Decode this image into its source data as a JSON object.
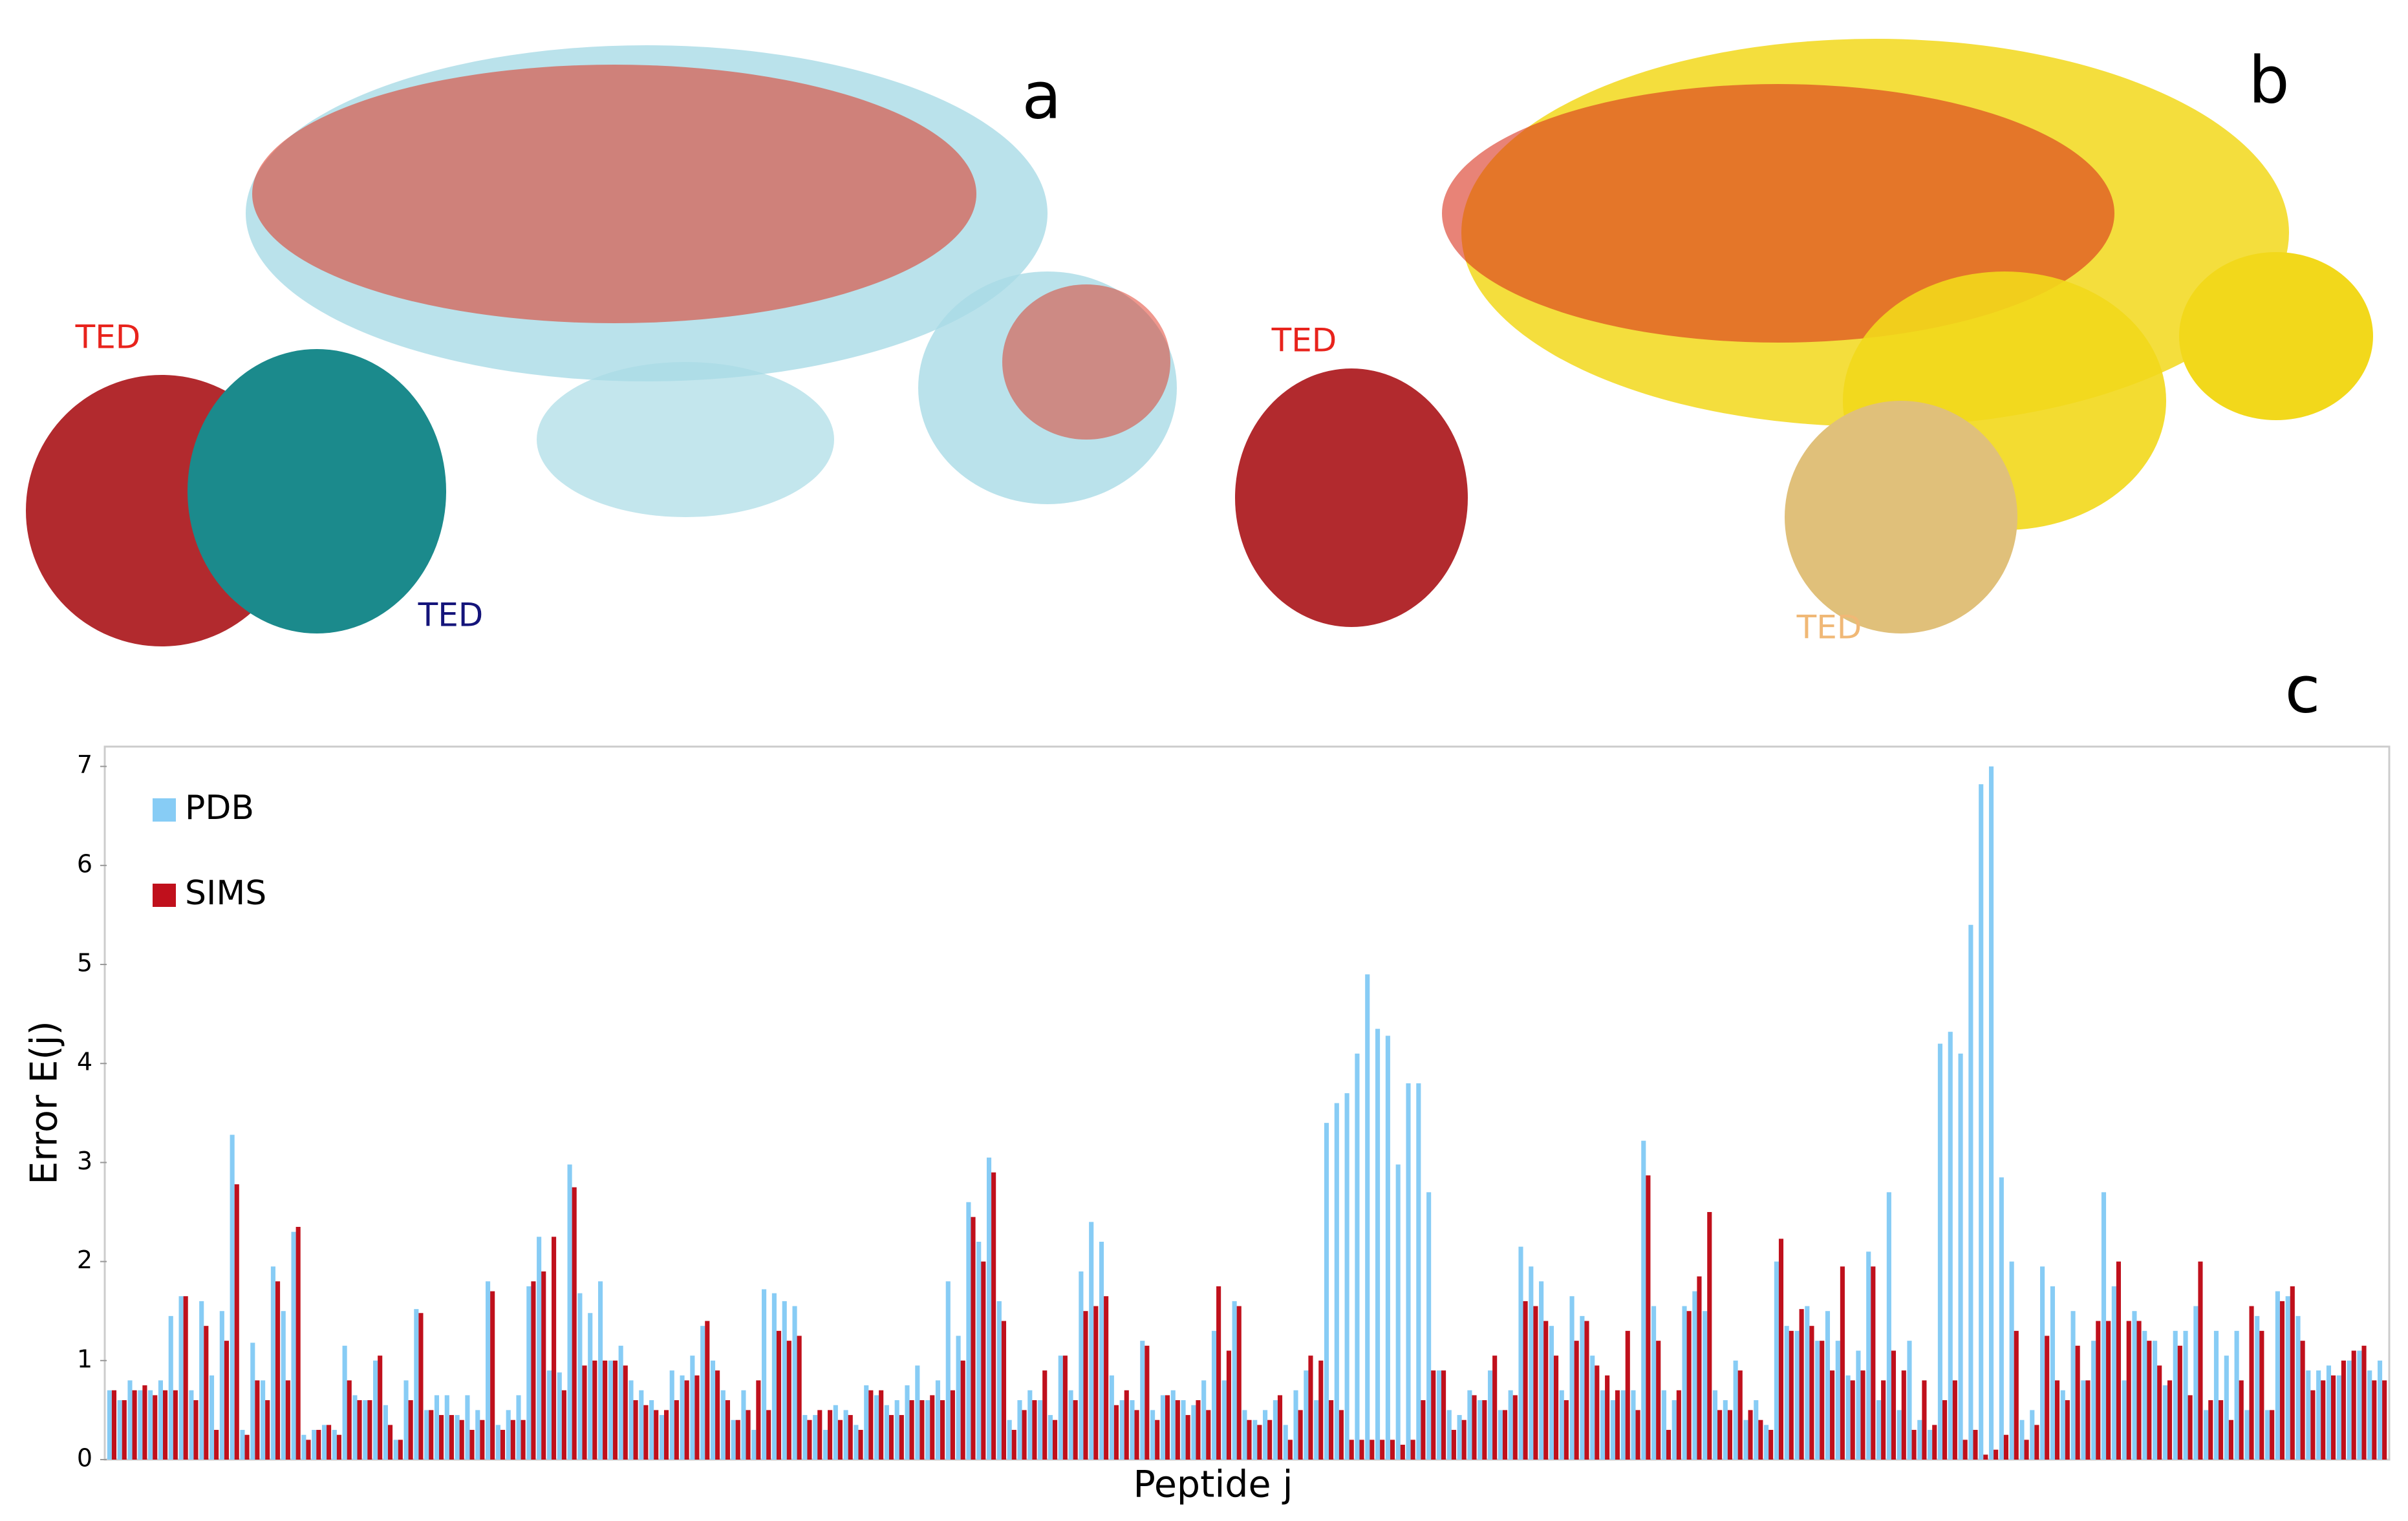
{
  "figure": {
    "panel_labels": [
      "a",
      "b",
      "c"
    ],
    "ted_labels": [
      "TED",
      "TED",
      "TED",
      "TED"
    ]
  },
  "chart_data": {
    "type": "bar",
    "x_label": "Peptide j",
    "y_label": "Error E(j)",
    "ylim": [
      0,
      7.2
    ],
    "yticks": [
      0,
      1,
      2,
      3,
      4,
      5,
      6,
      7
    ],
    "grid": false,
    "legend": "top-left",
    "series": [
      {
        "name": "PDB",
        "color": "#87ccf5",
        "values": [
          0.7,
          0.6,
          0.8,
          0.7,
          0.7,
          0.8,
          1.45,
          1.65,
          0.7,
          1.6,
          0.85,
          1.5,
          3.28,
          0.3,
          1.18,
          0.8,
          1.95,
          1.5,
          2.3,
          0.25,
          0.3,
          0.35,
          0.3,
          1.15,
          0.65,
          0.6,
          1.0,
          0.55,
          0.2,
          0.8,
          1.52,
          0.5,
          0.65,
          0.65,
          0.45,
          0.65,
          0.5,
          1.8,
          0.35,
          0.5,
          0.65,
          1.75,
          2.25,
          0.9,
          0.88,
          2.98,
          1.68,
          1.48,
          1.8,
          1.0,
          1.15,
          0.8,
          0.7,
          0.6,
          0.45,
          0.9,
          0.85,
          1.05,
          1.35,
          1.0,
          0.7,
          0.4,
          0.7,
          0.3,
          1.72,
          1.68,
          1.6,
          1.55,
          0.45,
          0.45,
          0.3,
          0.55,
          0.5,
          0.35,
          0.75,
          0.65,
          0.55,
          0.6,
          0.75,
          0.95,
          0.6,
          0.8,
          1.8,
          1.25,
          2.6,
          2.2,
          3.05,
          1.6,
          0.4,
          0.6,
          0.7,
          0.6,
          0.45,
          1.05,
          0.7,
          1.9,
          2.4,
          2.2,
          0.85,
          0.6,
          0.6,
          1.2,
          0.5,
          0.65,
          0.7,
          0.6,
          0.55,
          0.8,
          1.3,
          0.8,
          1.6,
          0.5,
          0.4,
          0.5,
          0.6,
          0.35,
          0.7,
          0.9,
          0.6,
          3.4,
          3.6,
          3.7,
          4.1,
          4.9,
          4.35,
          4.28,
          2.98,
          3.8,
          3.8,
          2.7,
          0.9,
          0.5,
          0.45,
          0.7,
          0.6,
          0.9,
          0.5,
          0.7,
          2.15,
          1.95,
          1.8,
          1.35,
          0.7,
          1.65,
          1.45,
          1.05,
          0.7,
          0.6,
          0.7,
          0.7,
          3.22,
          1.55,
          0.7,
          0.6,
          1.55,
          1.7,
          1.5,
          0.7,
          0.6,
          1.0,
          0.4,
          0.6,
          0.35,
          2.0,
          1.35,
          1.3,
          1.55,
          1.2,
          1.5,
          1.2,
          0.85,
          1.1,
          2.1,
          0.6,
          2.7,
          0.5,
          1.2,
          0.4,
          0.3,
          4.2,
          4.32,
          4.1,
          5.4,
          6.82,
          7.0,
          2.85,
          2.0,
          0.4,
          0.5,
          1.95,
          1.75,
          0.7,
          1.5,
          0.8,
          1.2,
          2.7,
          1.75,
          0.8,
          1.5,
          1.3,
          1.2,
          0.75,
          1.3,
          1.3,
          1.55,
          0.5,
          1.3,
          1.05,
          1.3,
          0.5,
          1.45,
          0.5,
          1.7,
          1.65,
          1.45,
          0.9,
          0.9,
          0.95,
          0.85,
          1.0,
          1.1,
          0.9,
          1.0
        ]
      },
      {
        "name": "SIMS",
        "color": "#c0101c",
        "values": [
          0.7,
          0.6,
          0.7,
          0.75,
          0.65,
          0.7,
          0.7,
          1.65,
          0.6,
          1.35,
          0.3,
          1.2,
          2.78,
          0.25,
          0.8,
          0.6,
          1.8,
          0.8,
          2.35,
          0.2,
          0.3,
          0.35,
          0.25,
          0.8,
          0.6,
          0.6,
          1.05,
          0.35,
          0.2,
          0.6,
          1.48,
          0.5,
          0.45,
          0.45,
          0.4,
          0.3,
          0.4,
          1.7,
          0.3,
          0.4,
          0.4,
          1.8,
          1.9,
          2.25,
          0.7,
          2.75,
          0.95,
          1.0,
          1.0,
          1.0,
          0.95,
          0.6,
          0.55,
          0.5,
          0.5,
          0.6,
          0.8,
          0.85,
          1.4,
          0.9,
          0.6,
          0.4,
          0.5,
          0.8,
          0.5,
          1.3,
          1.2,
          1.25,
          0.4,
          0.5,
          0.5,
          0.4,
          0.45,
          0.3,
          0.7,
          0.7,
          0.45,
          0.45,
          0.6,
          0.6,
          0.65,
          0.6,
          0.7,
          1.0,
          2.45,
          2.0,
          2.9,
          1.4,
          0.3,
          0.5,
          0.6,
          0.9,
          0.4,
          1.05,
          0.6,
          1.5,
          1.55,
          1.65,
          0.55,
          0.7,
          0.5,
          1.15,
          0.4,
          0.65,
          0.6,
          0.45,
          0.6,
          0.5,
          1.75,
          1.1,
          1.55,
          0.4,
          0.35,
          0.4,
          0.65,
          0.2,
          0.5,
          1.05,
          1.0,
          0.6,
          0.5,
          0.2,
          0.2,
          0.2,
          0.2,
          0.2,
          0.15,
          0.2,
          0.6,
          0.9,
          0.9,
          0.3,
          0.4,
          0.65,
          0.6,
          1.05,
          0.5,
          0.65,
          1.6,
          1.55,
          1.4,
          1.05,
          0.6,
          1.2,
          1.4,
          0.95,
          0.85,
          0.7,
          1.3,
          0.5,
          2.87,
          1.2,
          0.3,
          0.7,
          1.5,
          1.85,
          2.5,
          0.5,
          0.5,
          0.9,
          0.5,
          0.4,
          0.3,
          2.23,
          1.3,
          1.52,
          1.35,
          1.2,
          0.9,
          1.95,
          0.8,
          0.9,
          1.95,
          0.8,
          1.1,
          0.9,
          0.3,
          0.8,
          0.35,
          0.6,
          0.8,
          0.2,
          0.3,
          0.05,
          0.1,
          0.25,
          1.3,
          0.2,
          0.35,
          1.25,
          0.8,
          0.6,
          1.15,
          0.8,
          1.4,
          1.4,
          2.0,
          1.4,
          1.4,
          1.2,
          0.95,
          0.8,
          1.15,
          0.65,
          2.0,
          0.6,
          0.6,
          0.4,
          0.8,
          1.55,
          1.3,
          0.5,
          1.6,
          1.75,
          1.2,
          0.7,
          0.8,
          0.85,
          1.0,
          1.1,
          1.15,
          0.8,
          0.8
        ]
      }
    ]
  }
}
